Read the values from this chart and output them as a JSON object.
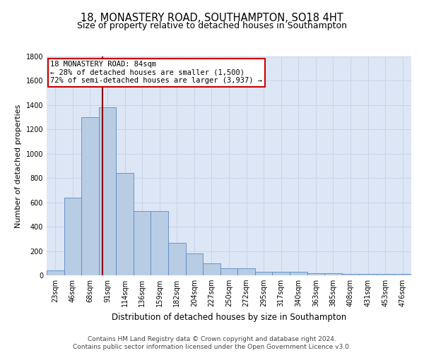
{
  "title1": "18, MONASTERY ROAD, SOUTHAMPTON, SO18 4HT",
  "title2": "Size of property relative to detached houses in Southampton",
  "xlabel": "Distribution of detached houses by size in Southampton",
  "ylabel": "Number of detached properties",
  "categories": [
    "23sqm",
    "46sqm",
    "68sqm",
    "91sqm",
    "114sqm",
    "136sqm",
    "159sqm",
    "182sqm",
    "204sqm",
    "227sqm",
    "250sqm",
    "272sqm",
    "295sqm",
    "317sqm",
    "340sqm",
    "363sqm",
    "385sqm",
    "408sqm",
    "431sqm",
    "453sqm",
    "476sqm"
  ],
  "values": [
    40,
    640,
    1300,
    1380,
    840,
    530,
    530,
    270,
    180,
    100,
    60,
    60,
    30,
    30,
    30,
    15,
    15,
    10,
    10,
    10,
    10
  ],
  "bar_color": "#b8cce4",
  "bar_edge_color": "#5b8ac4",
  "bar_edge_width": 0.6,
  "vline_color": "#8b0000",
  "annotation_text": "18 MONASTERY ROAD: 84sqm\n← 28% of detached houses are smaller (1,500)\n72% of semi-detached houses are larger (3,937) →",
  "annotation_box_color": "#ffffff",
  "annotation_box_edge": "#cc0000",
  "ylim": [
    0,
    1800
  ],
  "yticks": [
    0,
    200,
    400,
    600,
    800,
    1000,
    1200,
    1400,
    1600,
    1800
  ],
  "grid_color": "#c8d4e8",
  "background_color": "#dce6f5",
  "footer1": "Contains HM Land Registry data © Crown copyright and database right 2024.",
  "footer2": "Contains public sector information licensed under the Open Government Licence v3.0.",
  "title1_fontsize": 10.5,
  "title2_fontsize": 9,
  "xlabel_fontsize": 8.5,
  "ylabel_fontsize": 8,
  "tick_fontsize": 7,
  "annotation_fontsize": 7.5,
  "footer_fontsize": 6.5
}
